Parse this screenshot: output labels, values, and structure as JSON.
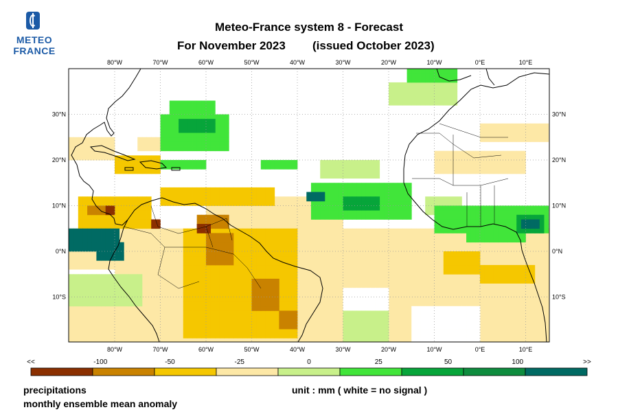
{
  "logo": {
    "line1": "METEO",
    "line2": "FRANCE"
  },
  "title": "Meteo-France system 8  -  Forecast",
  "subtitle_left": "For November 2023",
  "subtitle_right": "(issued October 2023)",
  "map": {
    "lon_labels": [
      "80°W",
      "70°W",
      "60°W",
      "50°W",
      "40°W",
      "30°W",
      "20°W",
      "10°W",
      "0°E",
      "10°E"
    ],
    "lat_labels": [
      "30°N",
      "20°N",
      "10°N",
      "0°N",
      "10°S"
    ]
  },
  "legend": {
    "labels": [
      "<<",
      "-100",
      "-50",
      "-25",
      "0",
      "25",
      "50",
      "100",
      ">>"
    ],
    "colors": [
      "#8b2f00",
      "#c98200",
      "#f5c700",
      "#fde8a6",
      "#c8f08a",
      "#41e53a",
      "#07a53a",
      "#0e8c3e",
      "#006a63"
    ]
  },
  "footer": {
    "variable": "precipitations",
    "description": "monthly ensemble mean anomaly",
    "unit": "unit : mm  ( white = no signal )"
  }
}
